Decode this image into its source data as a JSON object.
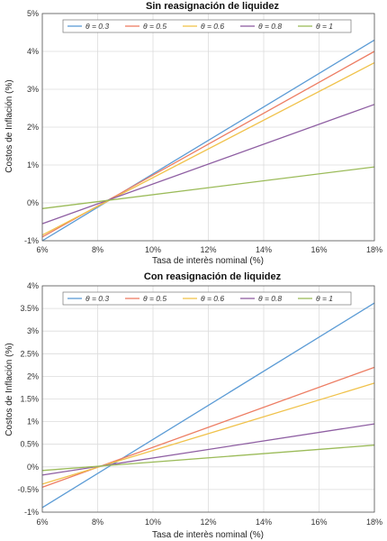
{
  "chart_data": [
    {
      "type": "line",
      "title": "Sin reasignación de liquidez",
      "xlabel": "Tasa de interès nominal (%)",
      "ylabel": "Costos de Inflación (%)",
      "xlim": [
        6,
        18
      ],
      "ylim": [
        -1,
        5
      ],
      "x_ticks": [
        "6%",
        "8%",
        "10%",
        "12%",
        "14%",
        "16%",
        "18%"
      ],
      "y_ticks": [
        "-1%",
        "0%",
        "1%",
        "2%",
        "3%",
        "4%",
        "5%"
      ],
      "x_tick_values": [
        6,
        8,
        10,
        12,
        14,
        16,
        18
      ],
      "y_tick_values": [
        -1,
        0,
        1,
        2,
        3,
        4,
        5
      ],
      "grid": true,
      "legend_position": "top",
      "x": [
        6,
        18
      ],
      "series": [
        {
          "name": "θ = 0.3",
          "color": "#5b9bd5",
          "values": [
            -1.0,
            4.3
          ]
        },
        {
          "name": "θ = 0.5",
          "color": "#ed7d63",
          "values": [
            -0.9,
            4.0
          ]
        },
        {
          "name": "θ = 0.6",
          "color": "#f0c24b",
          "values": [
            -0.85,
            3.7
          ]
        },
        {
          "name": "θ = 0.8",
          "color": "#8e5ea2",
          "values": [
            -0.55,
            2.6
          ]
        },
        {
          "name": "θ = 1",
          "color": "#9bbb59",
          "values": [
            -0.15,
            0.95
          ]
        }
      ]
    },
    {
      "type": "line",
      "title": "Con reasignación de liquidez",
      "xlabel": "Tasa de interès nominal (%)",
      "ylabel": "Costos de Inflación (%)",
      "xlim": [
        6,
        18
      ],
      "ylim": [
        -1,
        4
      ],
      "x_ticks": [
        "6%",
        "8%",
        "10%",
        "12%",
        "14%",
        "16%",
        "18%"
      ],
      "y_ticks": [
        "-1%",
        "-0.5%",
        "0%",
        "0.5%",
        "1%",
        "1.5%",
        "2%",
        "2.5%",
        "3%",
        "3.5%",
        "4%"
      ],
      "x_tick_values": [
        6,
        8,
        10,
        12,
        14,
        16,
        18
      ],
      "y_tick_values": [
        -1,
        -0.5,
        0,
        0.5,
        1,
        1.5,
        2,
        2.5,
        3,
        3.5,
        4
      ],
      "grid": true,
      "legend_position": "top",
      "x": [
        6,
        18
      ],
      "series": [
        {
          "name": "θ = 0.3",
          "color": "#5b9bd5",
          "values": [
            -0.9,
            3.62
          ]
        },
        {
          "name": "θ = 0.5",
          "color": "#ed7d63",
          "values": [
            -0.45,
            2.2
          ]
        },
        {
          "name": "θ = 0.6",
          "color": "#f0c24b",
          "values": [
            -0.38,
            1.85
          ]
        },
        {
          "name": "θ = 0.8",
          "color": "#8e5ea2",
          "values": [
            -0.18,
            0.95
          ]
        },
        {
          "name": "θ = 1",
          "color": "#9bbb59",
          "values": [
            -0.08,
            0.48
          ]
        }
      ]
    }
  ]
}
